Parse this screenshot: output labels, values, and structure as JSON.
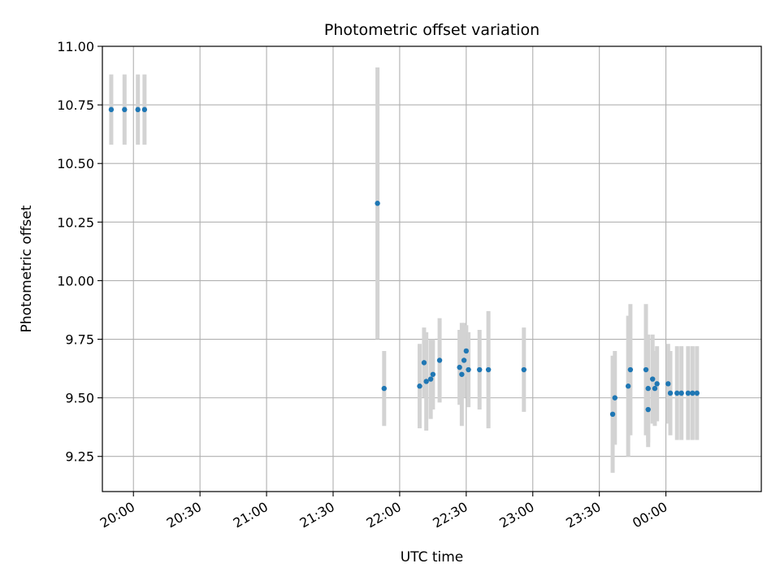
{
  "chart_data": {
    "type": "scatter",
    "title": "Photometric offset variation",
    "xlabel": "UTC time",
    "ylabel": "Photometric offset",
    "ylim": [
      9.1,
      11.0
    ],
    "xlim": [
      "19:46",
      "00:43"
    ],
    "grid": true,
    "x_ticks": [
      "20:00",
      "20:30",
      "21:00",
      "21:30",
      "22:00",
      "22:30",
      "23:00",
      "23:30",
      "00:00"
    ],
    "y_ticks": [
      "9.25",
      "9.50",
      "9.75",
      "10.00",
      "10.25",
      "10.50",
      "10.75",
      "11.00"
    ],
    "colors": {
      "points": "#1f77b4",
      "error_bars": "#d3d3d3",
      "grid": "#b0b0b0",
      "axes": "#000000"
    },
    "series": [
      {
        "points": [
          {
            "x": "19:50",
            "y": 10.73,
            "err": 0.15
          },
          {
            "x": "19:56",
            "y": 10.73,
            "err": 0.15
          },
          {
            "x": "20:02",
            "y": 10.73,
            "err": 0.15
          },
          {
            "x": "20:05",
            "y": 10.73,
            "err": 0.15
          },
          {
            "x": "21:50",
            "y": 10.33,
            "err": 0.58
          },
          {
            "x": "21:53",
            "y": 9.54,
            "err": 0.16
          },
          {
            "x": "22:09",
            "y": 9.55,
            "err": 0.18
          },
          {
            "x": "22:11",
            "y": 9.65,
            "err": 0.15
          },
          {
            "x": "22:12",
            "y": 9.57,
            "err": 0.21
          },
          {
            "x": "22:14",
            "y": 9.58,
            "err": 0.17
          },
          {
            "x": "22:15",
            "y": 9.6,
            "err": 0.15
          },
          {
            "x": "22:18",
            "y": 9.66,
            "err": 0.18
          },
          {
            "x": "22:27",
            "y": 9.63,
            "err": 0.16
          },
          {
            "x": "22:28",
            "y": 9.6,
            "err": 0.22
          },
          {
            "x": "22:29",
            "y": 9.66,
            "err": 0.16
          },
          {
            "x": "22:30",
            "y": 9.7,
            "err": 0.11
          },
          {
            "x": "22:31",
            "y": 9.62,
            "err": 0.16
          },
          {
            "x": "22:36",
            "y": 9.62,
            "err": 0.17
          },
          {
            "x": "22:40",
            "y": 9.62,
            "err": 0.25
          },
          {
            "x": "22:56",
            "y": 9.62,
            "err": 0.18
          },
          {
            "x": "23:36",
            "y": 9.43,
            "err": 0.25
          },
          {
            "x": "23:37",
            "y": 9.5,
            "err": 0.2
          },
          {
            "x": "23:43",
            "y": 9.55,
            "err": 0.3
          },
          {
            "x": "23:44",
            "y": 9.62,
            "err": 0.28
          },
          {
            "x": "23:51",
            "y": 9.62,
            "err": 0.28
          },
          {
            "x": "23:52",
            "y": 9.45,
            "err": 0.16
          },
          {
            "x": "23:52",
            "y": 9.54,
            "err": 0.23
          },
          {
            "x": "23:54",
            "y": 9.58,
            "err": 0.19
          },
          {
            "x": "23:55",
            "y": 9.54,
            "err": 0.16
          },
          {
            "x": "23:56",
            "y": 9.56,
            "err": 0.16
          },
          {
            "x": "00:01",
            "y": 9.56,
            "err": 0.17
          },
          {
            "x": "00:02",
            "y": 9.52,
            "err": 0.18
          },
          {
            "x": "00:05",
            "y": 9.52,
            "err": 0.2
          },
          {
            "x": "00:07",
            "y": 9.52,
            "err": 0.2
          },
          {
            "x": "00:10",
            "y": 9.52,
            "err": 0.2
          },
          {
            "x": "00:12",
            "y": 9.52,
            "err": 0.2
          },
          {
            "x": "00:14",
            "y": 9.52,
            "err": 0.2
          }
        ]
      }
    ]
  }
}
